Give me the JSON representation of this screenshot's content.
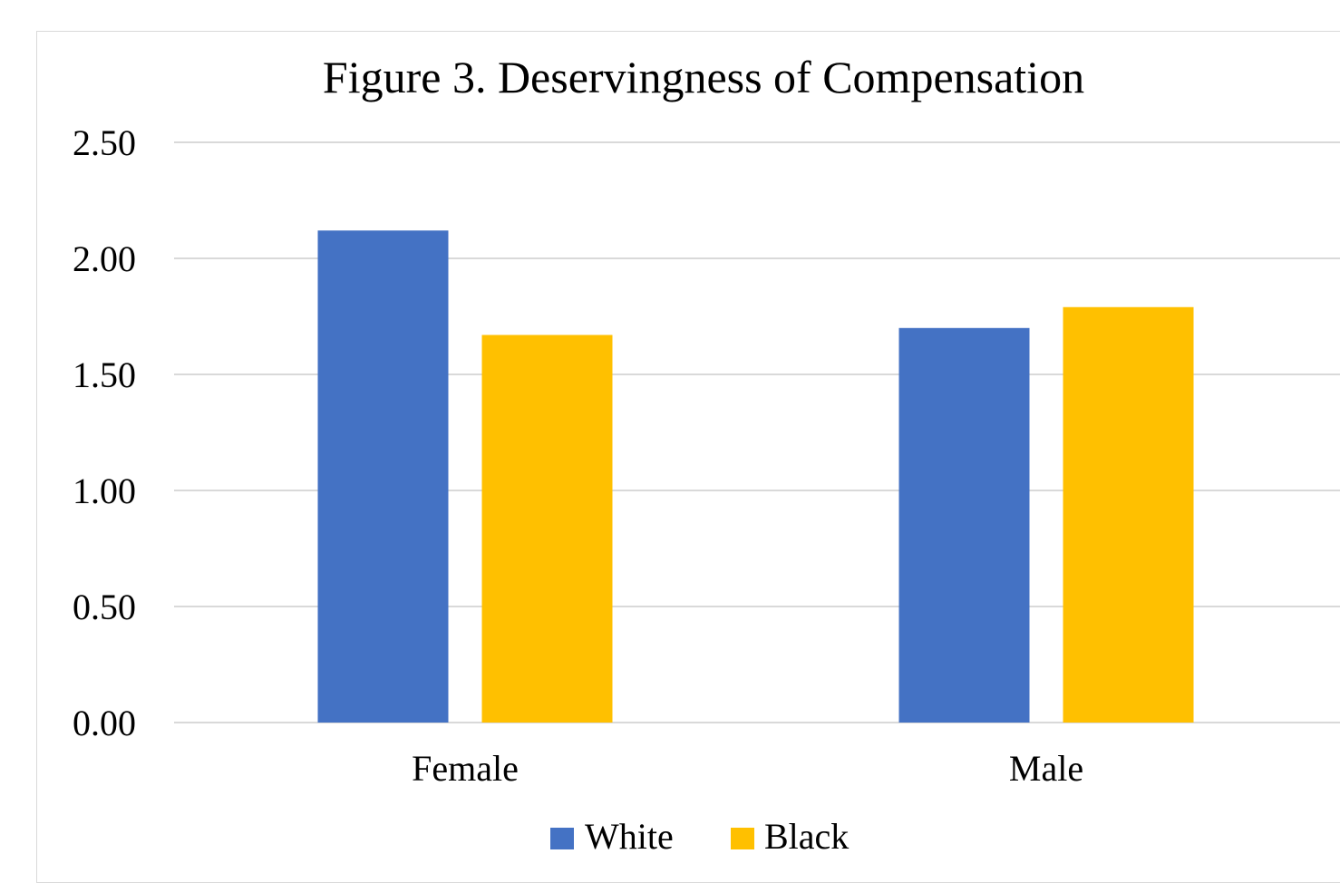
{
  "chart_data": {
    "type": "bar",
    "title": "Figure 3. Deservingness of Compensation",
    "xlabel": "",
    "ylabel": "",
    "categories": [
      "Female",
      "Male"
    ],
    "series": [
      {
        "name": "White",
        "color": "#4472C4",
        "values": [
          2.12,
          1.7
        ]
      },
      {
        "name": "Black",
        "color": "#FFC000",
        "values": [
          1.67,
          1.79
        ]
      }
    ],
    "ylim": [
      0,
      2.5
    ],
    "yticks": [
      "0.00",
      "0.50",
      "1.00",
      "1.50",
      "2.00",
      "2.50"
    ],
    "grid": true,
    "legend_position": "bottom"
  }
}
